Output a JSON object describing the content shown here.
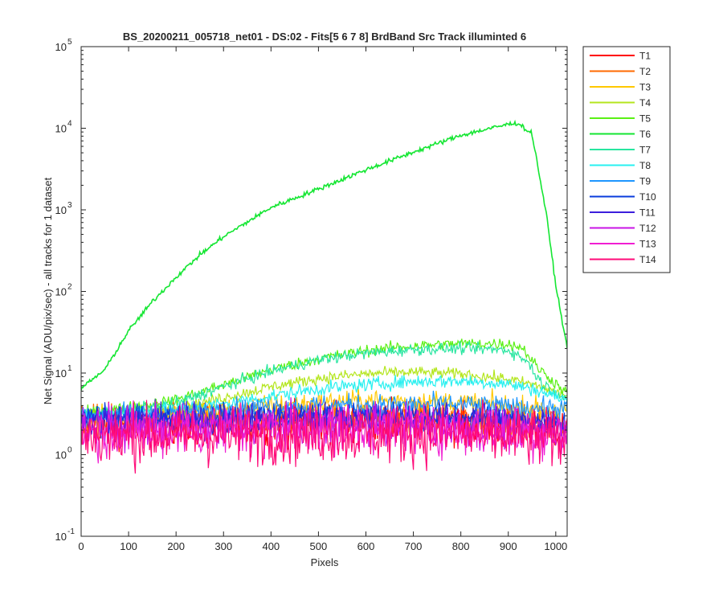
{
  "chart_data": {
    "type": "line",
    "title": "BS_20200211_005718_net01 - DS:02 - Fits[5  6  7  8]   BrdBand Src      Track illuminted 6",
    "xlabel": "Pixels",
    "ylabel": "Net Signal (ADU/pix/sec) - all tracks for 1 dataset",
    "xlim": [
      0,
      1024
    ],
    "ylim": [
      0.1,
      100000
    ],
    "yscale": "log",
    "xticks": [
      "0",
      "100",
      "200",
      "300",
      "400",
      "500",
      "600",
      "700",
      "800",
      "900",
      "1000"
    ],
    "yticks": [
      {
        "base": "10",
        "exp": "-1"
      },
      {
        "base": "10",
        "exp": "0"
      },
      {
        "base": "10",
        "exp": "1"
      },
      {
        "base": "10",
        "exp": "2"
      },
      {
        "base": "10",
        "exp": "3"
      },
      {
        "base": "10",
        "exp": "4"
      },
      {
        "base": "10",
        "exp": "5"
      }
    ],
    "grid": false,
    "legend_position": "outside-right",
    "series": [
      {
        "name": "T1",
        "color": "#ff0000",
        "x": [
          0,
          200,
          400,
          600,
          800,
          1024
        ],
        "y": [
          2.3,
          2.3,
          2.4,
          2.6,
          2.4,
          2.0
        ],
        "noise": 0.18
      },
      {
        "name": "T2",
        "color": "#ff6a00",
        "x": [
          0,
          200,
          400,
          600,
          800,
          1024
        ],
        "y": [
          2.5,
          2.6,
          2.9,
          3.0,
          2.8,
          2.3
        ],
        "noise": 0.15
      },
      {
        "name": "T3",
        "color": "#ffc800",
        "x": [
          0,
          200,
          400,
          600,
          800,
          1024
        ],
        "y": [
          2.9,
          3.2,
          4.0,
          4.6,
          4.4,
          3.4
        ],
        "noise": 0.1
      },
      {
        "name": "T4",
        "color": "#b4e61e",
        "x": [
          0,
          100,
          200,
          300,
          400,
          500,
          600,
          700,
          800,
          900,
          960,
          1024
        ],
        "y": [
          3.1,
          3.3,
          3.6,
          5.0,
          6.8,
          8.6,
          9.8,
          10.3,
          9.8,
          8.4,
          7.0,
          5.3
        ],
        "noise": 0.05
      },
      {
        "name": "T5",
        "color": "#5af014",
        "x": [
          0,
          100,
          200,
          300,
          400,
          500,
          600,
          700,
          800,
          900,
          930,
          960,
          1024
        ],
        "y": [
          3.2,
          3.8,
          4.7,
          7.2,
          11.0,
          15.0,
          18.8,
          21.6,
          23.0,
          22.8,
          20.5,
          12.0,
          5.6
        ],
        "noise": 0.05
      },
      {
        "name": "T6",
        "color": "#14e632",
        "x": [
          0,
          50,
          100,
          150,
          200,
          250,
          300,
          400,
          500,
          600,
          700,
          800,
          900,
          920,
          950,
          980,
          1000,
          1024
        ],
        "y": [
          6.5,
          11,
          33,
          75,
          150,
          280,
          470,
          1070,
          1800,
          3100,
          5100,
          8200,
          11200,
          11600,
          8500,
          900,
          120,
          20
        ],
        "noise": 0.02
      },
      {
        "name": "T7",
        "color": "#28e6a0",
        "x": [
          0,
          100,
          200,
          300,
          400,
          500,
          600,
          700,
          800,
          900,
          940,
          970,
          1024
        ],
        "y": [
          3.0,
          3.5,
          4.3,
          6.8,
          10.5,
          14.5,
          17.5,
          19.5,
          20.0,
          19.2,
          14.0,
          7.5,
          4.8
        ],
        "noise": 0.05
      },
      {
        "name": "T8",
        "color": "#28f0f0",
        "x": [
          0,
          100,
          200,
          300,
          400,
          500,
          600,
          700,
          800,
          900,
          960,
          1024
        ],
        "y": [
          3.0,
          3.3,
          3.6,
          4.2,
          5.2,
          6.4,
          7.2,
          7.9,
          8.0,
          7.4,
          6.2,
          4.6
        ],
        "noise": 0.06
      },
      {
        "name": "T9",
        "color": "#1e96ff",
        "x": [
          0,
          200,
          400,
          600,
          800,
          1024
        ],
        "y": [
          3.2,
          3.3,
          3.9,
          4.1,
          4.1,
          3.6
        ],
        "noise": 0.09
      },
      {
        "name": "T10",
        "color": "#0a3cdc",
        "x": [
          0,
          200,
          400,
          600,
          800,
          1024
        ],
        "y": [
          2.8,
          2.8,
          2.9,
          3.0,
          2.9,
          2.5
        ],
        "noise": 0.12
      },
      {
        "name": "T11",
        "color": "#3c1edc",
        "x": [
          0,
          200,
          400,
          600,
          800,
          1024
        ],
        "y": [
          2.6,
          2.6,
          2.7,
          2.8,
          2.7,
          2.3
        ],
        "noise": 0.14
      },
      {
        "name": "T12",
        "color": "#c814e6",
        "x": [
          0,
          200,
          400,
          600,
          800,
          1024
        ],
        "y": [
          2.2,
          2.2,
          2.3,
          2.4,
          2.3,
          1.9
        ],
        "noise": 0.18
      },
      {
        "name": "T13",
        "color": "#f01ed2",
        "x": [
          0,
          200,
          400,
          600,
          800,
          1024
        ],
        "y": [
          1.9,
          1.9,
          2.0,
          2.1,
          2.0,
          1.7
        ],
        "noise": 0.22
      },
      {
        "name": "T14",
        "color": "#ff0a78",
        "x": [
          0,
          200,
          400,
          600,
          800,
          1024
        ],
        "y": [
          1.7,
          1.7,
          1.75,
          1.8,
          1.75,
          1.5
        ],
        "noise": 0.26
      }
    ]
  }
}
